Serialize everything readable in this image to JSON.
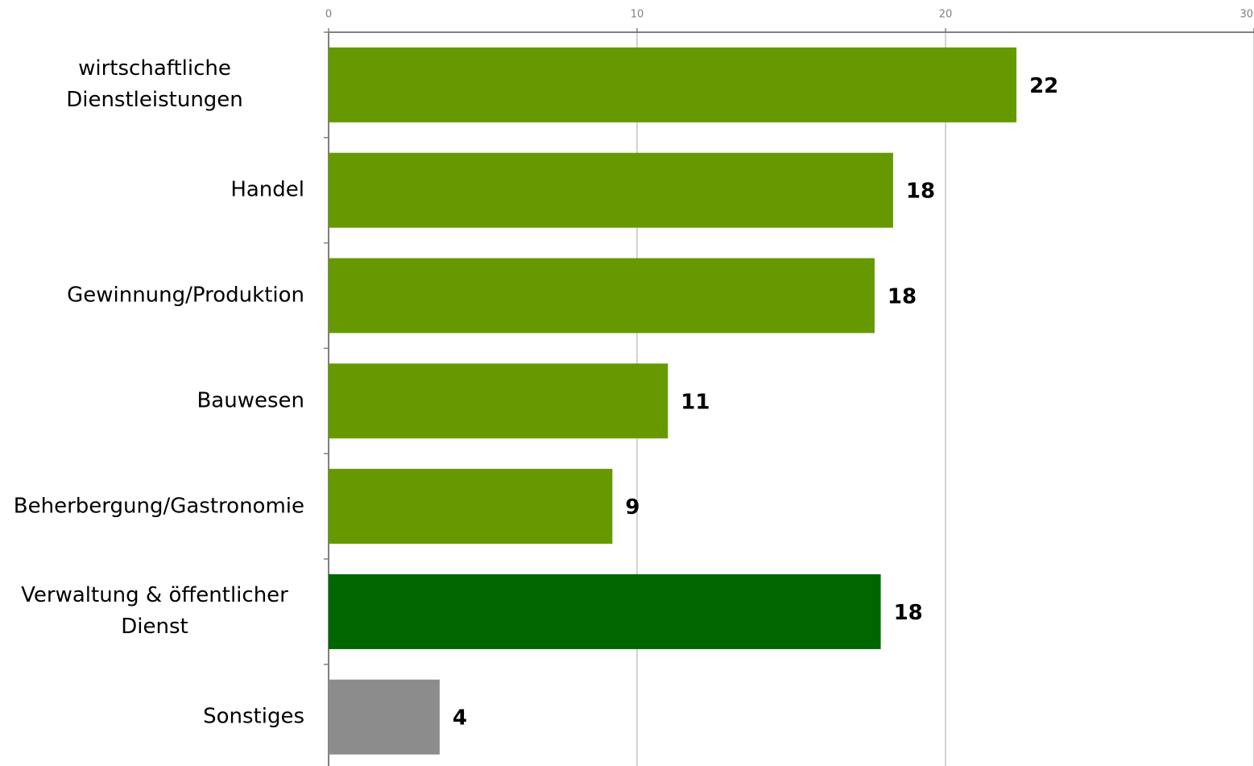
{
  "chart_data": {
    "type": "bar",
    "orientation": "horizontal",
    "categories": [
      "wirtschaftliche Dienstleistungen",
      "Handel",
      "Gewinnung/Produktion",
      "Bauwesen",
      "Beherbergung/Gastronomie",
      "Verwaltung & öffentlicher Dienst",
      "Sonstiges"
    ],
    "values": [
      22.3,
      18.3,
      17.7,
      11.0,
      9.2,
      17.9,
      3.6
    ],
    "value_labels": [
      "22",
      "18",
      "18",
      "11",
      "9",
      "18",
      "4"
    ],
    "colors": [
      "#669900",
      "#669900",
      "#669900",
      "#669900",
      "#669900",
      "#006600",
      "#8c8c8c"
    ],
    "xlim": [
      0,
      30
    ],
    "xticks": [
      0,
      10,
      20,
      30
    ],
    "grid": true
  }
}
